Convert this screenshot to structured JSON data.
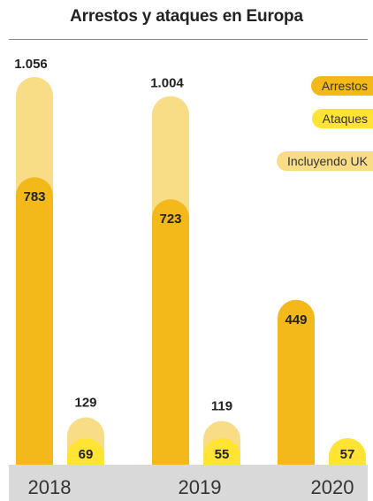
{
  "title": "Arrestos y ataques en Europa",
  "colors": {
    "arrestos": "#f3b81a",
    "ataques": "#ffe433",
    "incluyendo_uk": "#f9dd86",
    "axis_band": "#d9d9d9",
    "text": "#222222"
  },
  "legend": [
    {
      "label": "Arrestos",
      "color": "#f3b81a"
    },
    {
      "label": "Ataques",
      "color": "#ffe433"
    },
    {
      "label": "Incluyendo UK",
      "color": "#f9dd86"
    }
  ],
  "chart_data": {
    "type": "bar",
    "title": "Arrestos y ataques en Europa",
    "categories": [
      "2018",
      "2019",
      "2020"
    ],
    "series": [
      {
        "name": "Arrestos",
        "values": [
          783,
          723,
          449
        ],
        "labels": [
          "783",
          "723",
          "449"
        ]
      },
      {
        "name": "Ataques",
        "values": [
          69,
          55,
          57
        ],
        "labels": [
          "69",
          "55",
          "57"
        ]
      }
    ],
    "including_uk": {
      "name": "Incluyendo UK",
      "arrestos": [
        1056,
        1004,
        null
      ],
      "arrestos_labels": [
        "1.056",
        "1.004",
        ""
      ],
      "ataques": [
        129,
        119,
        null
      ],
      "ataques_labels": [
        "129",
        "119",
        ""
      ]
    },
    "xlabel": "",
    "ylabel": "",
    "ylim": [
      0,
      1056
    ],
    "grid": false,
    "legend_position": "top-right"
  }
}
